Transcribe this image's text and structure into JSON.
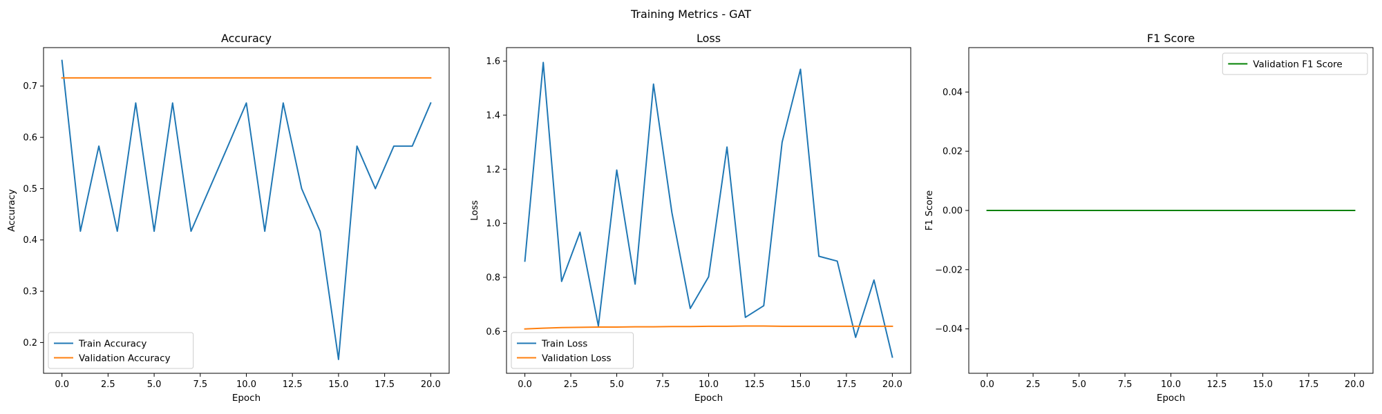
{
  "figure": {
    "title": "Training Metrics - GAT"
  },
  "chart_data": [
    {
      "type": "line",
      "title": "Accuracy",
      "xlabel": "Epoch",
      "ylabel": "Accuracy",
      "xlim": [
        -1,
        21
      ],
      "ylim": [
        0.14,
        0.775
      ],
      "xticks": [
        0,
        2.5,
        5,
        7.5,
        10,
        12.5,
        15,
        17.5,
        20
      ],
      "xtick_labels": [
        "0.0",
        "2.5",
        "5.0",
        "7.5",
        "10.0",
        "12.5",
        "15.0",
        "17.5",
        "20.0"
      ],
      "yticks": [
        0.2,
        0.3,
        0.4,
        0.5,
        0.6,
        0.7
      ],
      "ytick_labels": [
        "0.2",
        "0.3",
        "0.4",
        "0.5",
        "0.6",
        "0.7"
      ],
      "grid": false,
      "legend_position": "lower-left",
      "x": [
        0,
        1,
        2,
        3,
        4,
        5,
        6,
        7,
        8,
        9,
        10,
        11,
        12,
        13,
        14,
        15,
        16,
        17,
        18,
        19,
        20
      ],
      "series": [
        {
          "name": "Train Accuracy",
          "color": "#1f77b4",
          "values": [
            0.75,
            0.417,
            0.583,
            0.417,
            0.667,
            0.417,
            0.667,
            0.417,
            0.5,
            0.583,
            0.667,
            0.417,
            0.667,
            0.5,
            0.417,
            0.167,
            0.583,
            0.5,
            0.583,
            0.583,
            0.667
          ]
        },
        {
          "name": "Validation Accuracy",
          "color": "#ff7f0e",
          "values": [
            0.716,
            0.716,
            0.716,
            0.716,
            0.716,
            0.716,
            0.716,
            0.716,
            0.716,
            0.716,
            0.716,
            0.716,
            0.716,
            0.716,
            0.716,
            0.716,
            0.716,
            0.716,
            0.716,
            0.716,
            0.716
          ]
        }
      ]
    },
    {
      "type": "line",
      "title": "Loss",
      "xlabel": "Epoch",
      "ylabel": "Loss",
      "xlim": [
        -1,
        21
      ],
      "ylim": [
        0.445,
        1.65
      ],
      "xticks": [
        0,
        2.5,
        5,
        7.5,
        10,
        12.5,
        15,
        17.5,
        20
      ],
      "xtick_labels": [
        "0.0",
        "2.5",
        "5.0",
        "7.5",
        "10.0",
        "12.5",
        "15.0",
        "17.5",
        "20.0"
      ],
      "yticks": [
        0.6,
        0.8,
        1.0,
        1.2,
        1.4,
        1.6
      ],
      "ytick_labels": [
        "0.6",
        "0.8",
        "1.0",
        "1.2",
        "1.4",
        "1.6"
      ],
      "grid": false,
      "legend_position": "lower-left",
      "x": [
        0,
        1,
        2,
        3,
        4,
        5,
        6,
        7,
        8,
        9,
        10,
        11,
        12,
        13,
        14,
        15,
        16,
        17,
        18,
        19,
        20
      ],
      "series": [
        {
          "name": "Train Loss",
          "color": "#1f77b4",
          "values": [
            0.86,
            1.595,
            0.785,
            0.967,
            0.62,
            1.197,
            0.775,
            1.515,
            1.04,
            0.685,
            0.802,
            1.282,
            0.652,
            0.695,
            1.3,
            1.57,
            0.878,
            0.86,
            0.578,
            0.79,
            0.505
          ]
        },
        {
          "name": "Validation Loss",
          "color": "#ff7f0e",
          "values": [
            0.609,
            0.612,
            0.614,
            0.615,
            0.616,
            0.616,
            0.617,
            0.617,
            0.618,
            0.618,
            0.619,
            0.619,
            0.62,
            0.62,
            0.619,
            0.619,
            0.619,
            0.619,
            0.619,
            0.619,
            0.619
          ]
        }
      ]
    },
    {
      "type": "line",
      "title": "F1 Score",
      "xlabel": "Epoch",
      "ylabel": "F1 Score",
      "xlim": [
        -1,
        21
      ],
      "ylim": [
        -0.055,
        0.055
      ],
      "xticks": [
        0,
        2.5,
        5,
        7.5,
        10,
        12.5,
        15,
        17.5,
        20
      ],
      "xtick_labels": [
        "0.0",
        "2.5",
        "5.0",
        "7.5",
        "10.0",
        "12.5",
        "15.0",
        "17.5",
        "20.0"
      ],
      "yticks": [
        -0.04,
        -0.02,
        0.0,
        0.02,
        0.04
      ],
      "ytick_labels": [
        "−0.04",
        "−0.02",
        "0.00",
        "0.02",
        "0.04"
      ],
      "grid": false,
      "legend_position": "upper-right",
      "x": [
        0,
        1,
        2,
        3,
        4,
        5,
        6,
        7,
        8,
        9,
        10,
        11,
        12,
        13,
        14,
        15,
        16,
        17,
        18,
        19,
        20
      ],
      "series": [
        {
          "name": "Validation F1 Score",
          "color": "#008000",
          "values": [
            0,
            0,
            0,
            0,
            0,
            0,
            0,
            0,
            0,
            0,
            0,
            0,
            0,
            0,
            0,
            0,
            0,
            0,
            0,
            0,
            0
          ]
        }
      ]
    }
  ]
}
